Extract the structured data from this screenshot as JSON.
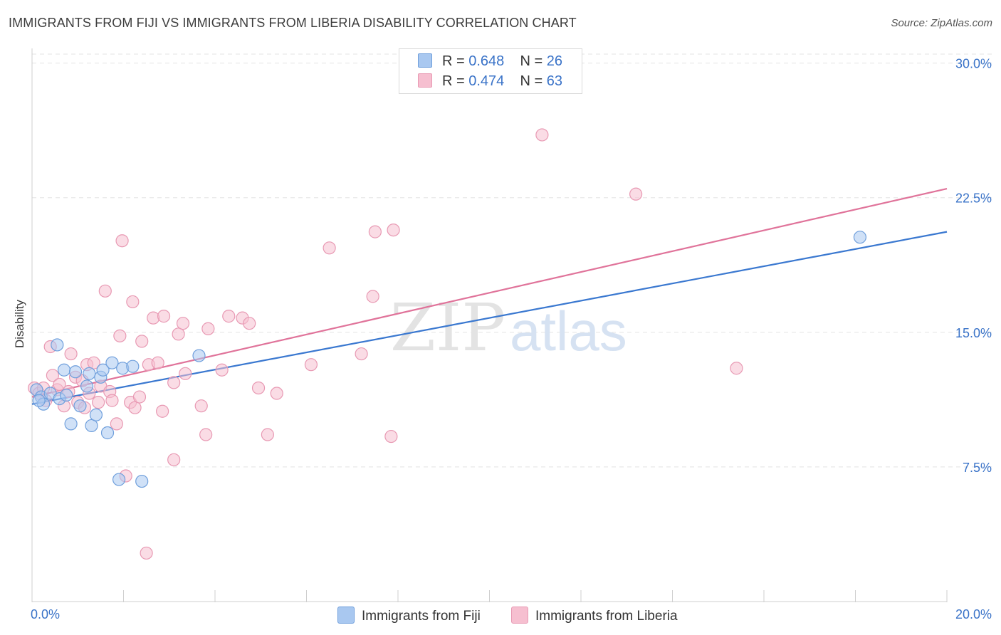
{
  "title": "IMMIGRANTS FROM FIJI VS IMMIGRANTS FROM LIBERIA DISABILITY CORRELATION CHART",
  "source": "Source: ZipAtlas.com",
  "watermark": {
    "zip": "ZIP",
    "atlas": "atlas"
  },
  "legend": {
    "fiji": {
      "r_label": "R = ",
      "r_value": "0.648",
      "n_label": "N = ",
      "n_value": "26"
    },
    "liberia": {
      "r_label": "R = ",
      "r_value": "0.474",
      "n_label": "N = ",
      "n_value": "63"
    }
  },
  "colors": {
    "fiji_fill": "#a9c8f0",
    "fiji_stroke": "#6f9fdc",
    "fiji_line": "#3a78d0",
    "liberia_fill": "#f6bfd0",
    "liberia_stroke": "#e899b3",
    "liberia_line": "#e0739a",
    "tick_label": "#3a73c8",
    "grid": "#e3e3e3"
  },
  "chart_data": {
    "type": "scatter",
    "title": "IMMIGRANTS FROM FIJI VS IMMIGRANTS FROM LIBERIA DISABILITY CORRELATION CHART",
    "xlabel": "",
    "ylabel": "Disability",
    "xlim": [
      0,
      20
    ],
    "ylim": [
      0,
      30.5
    ],
    "x_tick_labels": [
      "0.0%",
      "20.0%"
    ],
    "y_ticks": [
      7.5,
      15.0,
      22.5,
      30.0
    ],
    "y_tick_labels": [
      "7.5%",
      "15.0%",
      "22.5%",
      "30.0%"
    ],
    "legend_position": "top-center",
    "series": [
      {
        "name": "Immigrants from Fiji",
        "r": 0.648,
        "n": 26,
        "trend": {
          "x": [
            0,
            20
          ],
          "y": [
            11.0,
            20.6
          ]
        },
        "points": [
          [
            0.1,
            11.8
          ],
          [
            0.2,
            11.4
          ],
          [
            0.25,
            11.0
          ],
          [
            0.4,
            11.6
          ],
          [
            0.55,
            14.3
          ],
          [
            0.6,
            11.3
          ],
          [
            0.7,
            12.9
          ],
          [
            0.75,
            11.5
          ],
          [
            0.85,
            9.9
          ],
          [
            0.95,
            12.8
          ],
          [
            1.05,
            10.9
          ],
          [
            1.2,
            12.0
          ],
          [
            1.25,
            12.7
          ],
          [
            1.3,
            9.8
          ],
          [
            1.4,
            10.4
          ],
          [
            1.5,
            12.5
          ],
          [
            1.55,
            12.9
          ],
          [
            1.65,
            9.4
          ],
          [
            1.75,
            13.3
          ],
          [
            1.9,
            6.8
          ],
          [
            1.98,
            13.0
          ],
          [
            2.2,
            13.1
          ],
          [
            2.4,
            6.7
          ],
          [
            3.65,
            13.7
          ],
          [
            18.1,
            20.3
          ],
          [
            0.15,
            11.2
          ]
        ]
      },
      {
        "name": "Immigrants from Liberia",
        "r": 0.474,
        "n": 63,
        "trend": {
          "x": [
            0,
            20
          ],
          "y": [
            11.4,
            23.0
          ]
        },
        "points": [
          [
            0.05,
            11.9
          ],
          [
            0.15,
            11.6
          ],
          [
            0.3,
            11.2
          ],
          [
            0.4,
            14.2
          ],
          [
            0.45,
            12.6
          ],
          [
            0.55,
            11.8
          ],
          [
            0.6,
            12.1
          ],
          [
            0.7,
            10.9
          ],
          [
            0.8,
            11.7
          ],
          [
            0.85,
            13.8
          ],
          [
            0.95,
            12.5
          ],
          [
            1.0,
            11.1
          ],
          [
            1.1,
            12.3
          ],
          [
            1.15,
            10.8
          ],
          [
            1.2,
            13.2
          ],
          [
            1.35,
            13.3
          ],
          [
            1.45,
            11.1
          ],
          [
            1.5,
            12.0
          ],
          [
            1.6,
            17.3
          ],
          [
            1.7,
            11.7
          ],
          [
            1.75,
            11.2
          ],
          [
            1.85,
            9.9
          ],
          [
            1.92,
            14.8
          ],
          [
            1.97,
            20.1
          ],
          [
            2.05,
            7.0
          ],
          [
            2.15,
            11.1
          ],
          [
            2.2,
            16.7
          ],
          [
            2.25,
            10.8
          ],
          [
            2.35,
            11.4
          ],
          [
            2.4,
            14.5
          ],
          [
            2.5,
            2.7
          ],
          [
            2.55,
            13.2
          ],
          [
            2.65,
            15.8
          ],
          [
            2.75,
            13.3
          ],
          [
            2.85,
            10.6
          ],
          [
            2.88,
            15.9
          ],
          [
            3.1,
            7.9
          ],
          [
            3.1,
            12.2
          ],
          [
            3.2,
            14.9
          ],
          [
            3.3,
            15.5
          ],
          [
            3.35,
            12.7
          ],
          [
            3.7,
            10.9
          ],
          [
            3.8,
            9.3
          ],
          [
            3.85,
            15.2
          ],
          [
            4.15,
            12.9
          ],
          [
            4.3,
            15.9
          ],
          [
            4.6,
            15.8
          ],
          [
            4.75,
            15.5
          ],
          [
            4.95,
            11.9
          ],
          [
            5.15,
            9.3
          ],
          [
            5.35,
            11.6
          ],
          [
            6.1,
            13.2
          ],
          [
            6.5,
            19.7
          ],
          [
            7.2,
            13.8
          ],
          [
            7.45,
            17.0
          ],
          [
            7.5,
            20.6
          ],
          [
            7.85,
            9.2
          ],
          [
            7.9,
            20.7
          ],
          [
            11.15,
            26.0
          ],
          [
            13.2,
            22.7
          ],
          [
            15.4,
            13.0
          ],
          [
            0.25,
            11.9
          ],
          [
            1.25,
            11.6
          ]
        ]
      }
    ]
  },
  "bottom_legend": {
    "fiji": "Immigrants from Fiji",
    "liberia": "Immigrants from Liberia"
  }
}
